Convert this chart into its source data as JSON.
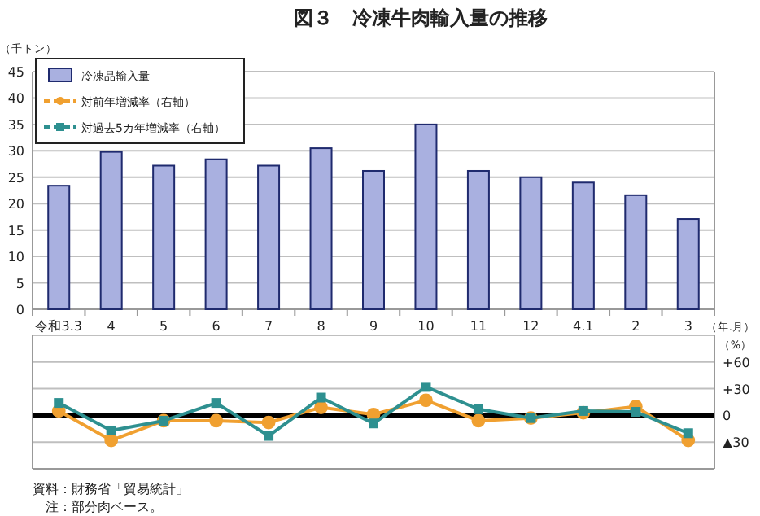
{
  "chart_data": [
    {
      "type": "bar",
      "title": "図３　冷凍牛肉輸入量の推移",
      "ylabel": "（千トン）",
      "xlabel": "（年.月）",
      "categories": [
        "令和3.3",
        "4",
        "5",
        "6",
        "7",
        "8",
        "9",
        "10",
        "11",
        "12",
        "4.1",
        "2",
        "3"
      ],
      "series": [
        {
          "name": "冷凍品輸入量",
          "color": "#a9b0e0",
          "values": [
            23.4,
            29.8,
            27.2,
            28.4,
            27.2,
            30.5,
            26.2,
            35.0,
            26.2,
            25.0,
            24.0,
            21.6,
            17.1
          ]
        }
      ],
      "ylim": [
        0,
        45
      ],
      "yticks": [
        0,
        5,
        10,
        15,
        20,
        25,
        30,
        35,
        40,
        45
      ],
      "grid": "y",
      "legend": "top left"
    },
    {
      "type": "line",
      "ylabel": "（%）",
      "categories": [
        null,
        null,
        null,
        null,
        null,
        null,
        null,
        null,
        null,
        null,
        null,
        null,
        null
      ],
      "series": [
        {
          "name": "対前年増減率（右軸）",
          "color": "#f0a030",
          "marker": "circle",
          "values": [
            5,
            -28,
            -6,
            -6,
            -8,
            9,
            1,
            17,
            -6,
            -3,
            3,
            10,
            -28
          ]
        },
        {
          "name": "対過去5カ年増減率（右軸）",
          "color": "#2e9090",
          "marker": "square",
          "values": [
            14,
            -17,
            -6,
            14,
            -23,
            20,
            -9,
            32,
            7,
            -3,
            5,
            4,
            -20
          ]
        }
      ],
      "ylim": [
        -60,
        90
      ],
      "yticks": [
        {
          "value": -60,
          "label": null
        },
        {
          "value": -30,
          "label": "▲30"
        },
        0,
        {
          "value": 30,
          "label": "+30"
        },
        {
          "value": 60,
          "label": "+60"
        },
        {
          "value": 90,
          "label": null
        }
      ],
      "ref_lines": [
        {
          "axis": "y",
          "value": 0,
          "color": "#000000"
        }
      ],
      "grid": "y",
      "tick_labels": "y",
      "legend": "top left",
      "annotations": [
        "資料：財務省「貿易統計」",
        "注：部分肉ベース。"
      ]
    }
  ]
}
